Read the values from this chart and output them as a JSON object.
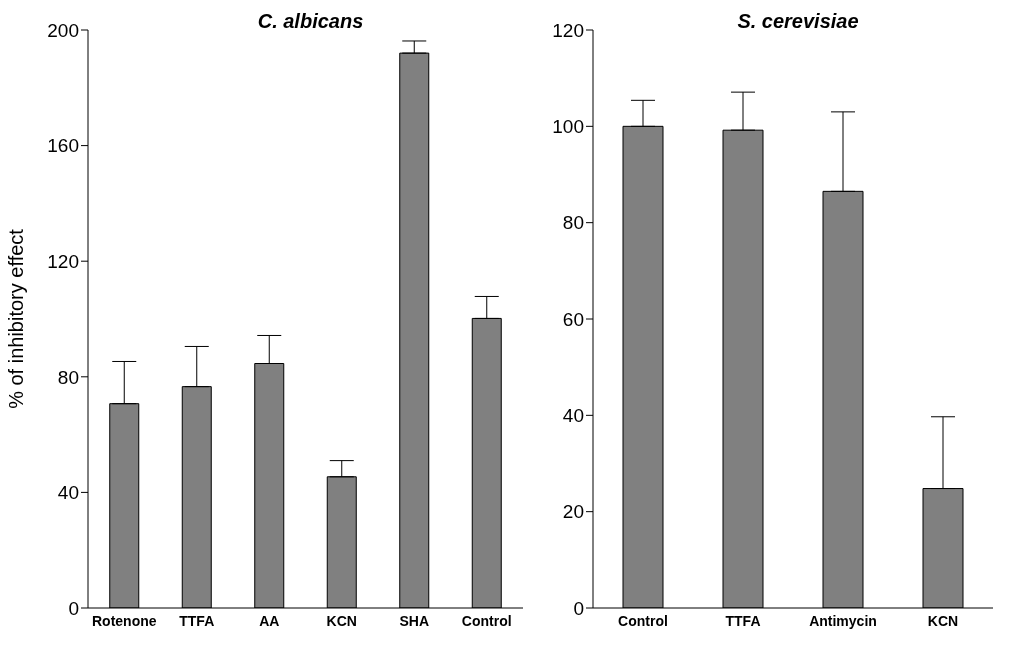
{
  "chart_data": [
    {
      "type": "bar",
      "title": "C. albicans",
      "ylabel": "% of inhibitory effect",
      "categories": [
        "Rotenone",
        "TTFA",
        "AA",
        "KCN",
        "SHA",
        "Control"
      ],
      "values": [
        70.7,
        76.6,
        84.6,
        45.4,
        192,
        100.2
      ],
      "errors": [
        [
          70.7,
          85.3
        ],
        [
          76.6,
          90.5
        ],
        [
          84.6,
          94.3
        ],
        [
          45.4,
          51
        ],
        [
          192,
          196.2
        ],
        [
          100.2,
          107.8
        ]
      ],
      "color": "#808080",
      "ylim": [
        0,
        200
      ],
      "yticks": [
        0,
        40,
        80,
        120,
        160,
        200
      ],
      "grid": false,
      "legend": false
    },
    {
      "type": "bar",
      "title": "S. cerevisiae",
      "categories": [
        "Control",
        "TTFA",
        "Antimycin",
        "KCN"
      ],
      "values": [
        100,
        99.2,
        86.5,
        24.8
      ],
      "errors": [
        [
          100,
          105.4
        ],
        [
          99.2,
          107.1
        ],
        [
          86.5,
          103
        ],
        [
          24.8,
          39.7
        ]
      ],
      "color": "#808080",
      "ylim": [
        0,
        120
      ],
      "yticks": [
        0,
        20,
        40,
        60,
        80,
        100,
        120
      ],
      "grid": false,
      "legend": false
    }
  ]
}
